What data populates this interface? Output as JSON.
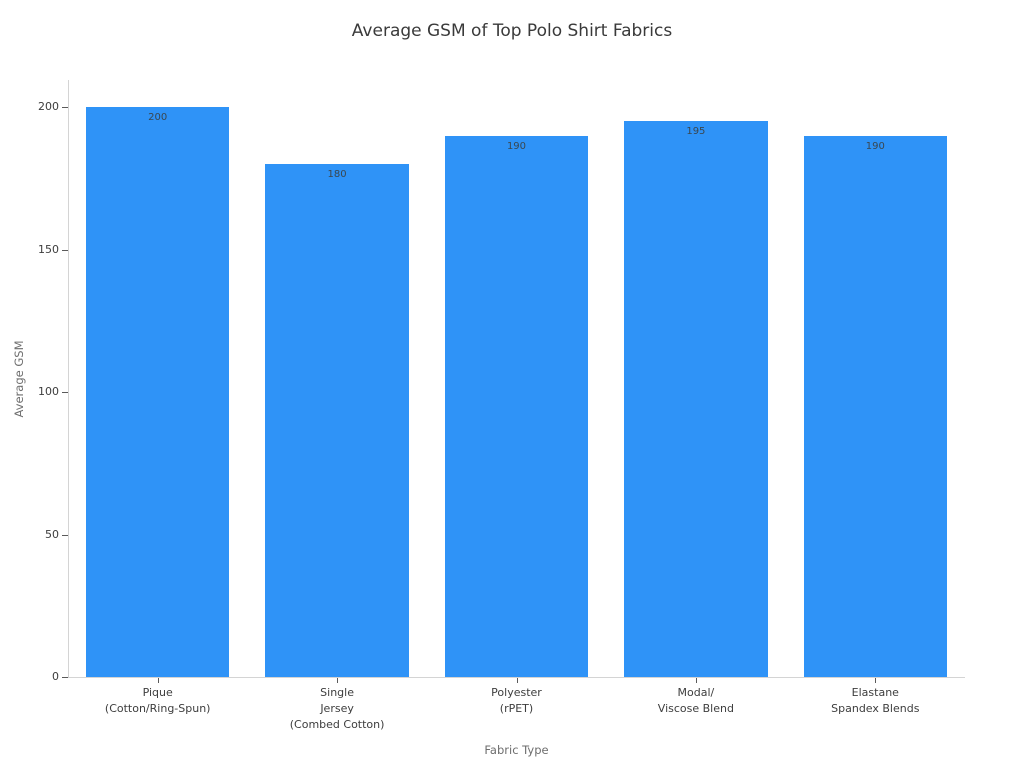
{
  "chart_data": {
    "type": "bar",
    "title": "Average GSM of Top Polo Shirt Fabrics",
    "xlabel": "Fabric Type",
    "ylabel": "Average GSM",
    "categories": [
      "Pique\n(Cotton/Ring-Spun)",
      "Single\nJersey\n(Combed Cotton)",
      "Polyester\n(rPET)",
      "Modal/\nViscose Blend",
      "Elastane\nSpandex Blends"
    ],
    "values": [
      200,
      180,
      190,
      195,
      190
    ],
    "bar_labels": [
      "200",
      "180",
      "190",
      "195",
      "190"
    ],
    "yticks": [
      0,
      50,
      100,
      150,
      200
    ],
    "ylim": [
      0,
      209.5
    ],
    "grid": false,
    "legend": null,
    "colors": {
      "bar": "#2F93F7",
      "axis_line": "#d4d4d4",
      "tick": "#5a5a5a",
      "tick_label": "#3d3d3d",
      "axis_title": "#6e6e6e",
      "title": "#3a3a3a",
      "value_label": "#3a4750",
      "background": "#ffffff"
    }
  }
}
